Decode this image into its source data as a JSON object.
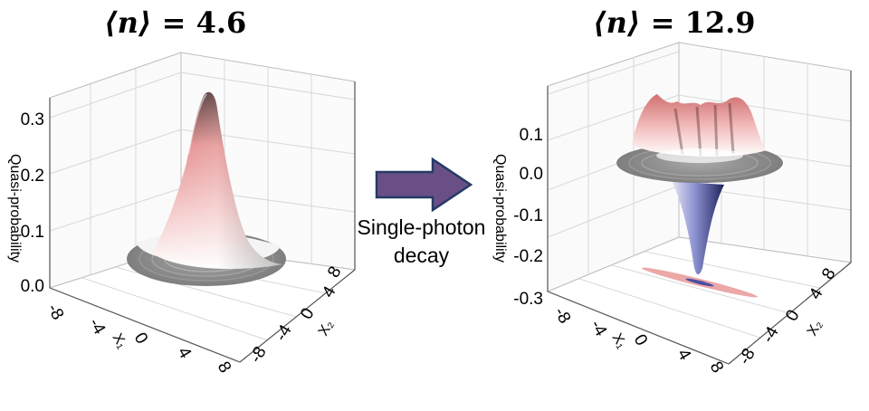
{
  "panels": [
    {
      "title_symbol": "⟨n⟩",
      "title_value": "= 4.6",
      "zlabel": "Quasi-probability",
      "z_ticks": [
        "0.0",
        "0.1",
        "0.2",
        "0.3"
      ],
      "x_ticks": [
        "-8",
        "-4",
        "0",
        "4",
        "8"
      ],
      "x_label": "X₁",
      "y_ticks": [
        "-8",
        "-4",
        "0",
        "4",
        "8"
      ],
      "y_label": "X₂"
    },
    {
      "title_symbol": "⟨n⟩",
      "title_value": "= 12.9",
      "zlabel": "Quasi-probability",
      "z_ticks": [
        "-0.3",
        "-0.2",
        "-0.1",
        "0.0",
        "0.1"
      ],
      "x_ticks": [
        "-8",
        "-4",
        "0",
        "4",
        "8"
      ],
      "x_label": "X₁",
      "y_ticks": [
        "-8",
        "-4",
        "0",
        "4",
        "8"
      ],
      "y_label": "X₂"
    }
  ],
  "arrow": {
    "line1": "Single-photon",
    "line2": "decay"
  },
  "colors": {
    "positive": "#e9898a",
    "negative": "#4b4fa3",
    "arrow_fill": "#6a4f86",
    "arrow_stroke": "#253a66",
    "disk": "#8a8a8a"
  }
}
